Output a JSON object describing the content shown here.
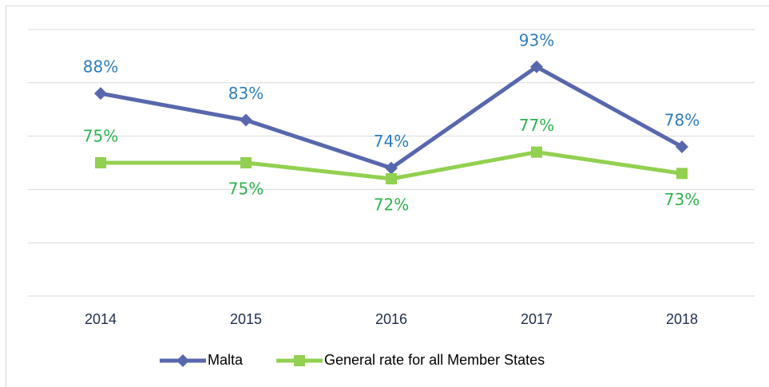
{
  "chart_data": {
    "type": "line",
    "categories": [
      "2014",
      "2015",
      "2016",
      "2017",
      "2018"
    ],
    "series": [
      {
        "name": "Malta",
        "color": "#5867ad",
        "label_color": "#2e7dbb",
        "marker": "diamond",
        "values": [
          88,
          83,
          74,
          93,
          78
        ],
        "value_labels": [
          "88%",
          "83%",
          "74%",
          "93%",
          "78%"
        ]
      },
      {
        "name": "General rate for all Member States",
        "color": "#92d050",
        "label_color": "#2eb34f",
        "marker": "square",
        "values": [
          75,
          75,
          72,
          77,
          73
        ],
        "value_labels": [
          "75%",
          "75%",
          "72%",
          "77%",
          "73%"
        ]
      }
    ],
    "ylim": [
      50,
      100
    ],
    "yticks": [
      50,
      60,
      70,
      80,
      90,
      100
    ],
    "grid": true,
    "legend": "bottom"
  }
}
